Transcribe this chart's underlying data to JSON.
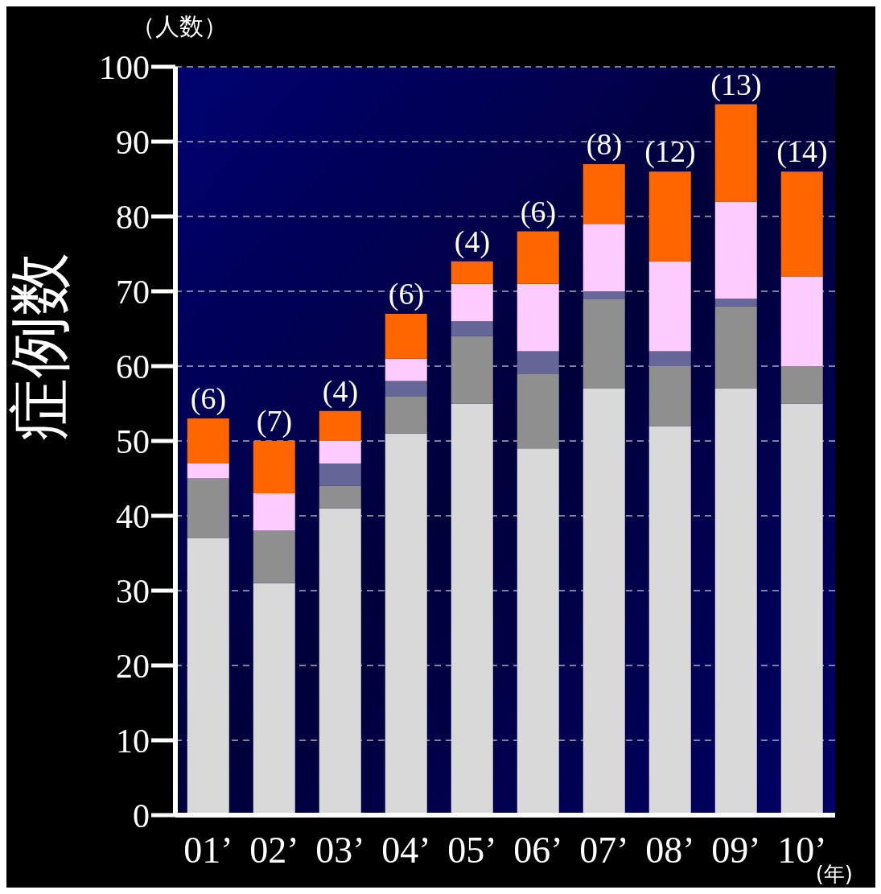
{
  "chart_data": {
    "type": "bar",
    "stacked": true,
    "xlabel": "(年)",
    "ylabel": "症例数",
    "categories": [
      "01’",
      "02’",
      "03’",
      "04’",
      "05’",
      "06’",
      "07’",
      "08’",
      "09’",
      "10’"
    ],
    "series": [
      {
        "color": "#d9d9d9",
        "values": [
          37,
          31,
          41,
          51,
          55,
          49,
          57,
          52,
          57,
          55
        ]
      },
      {
        "color": "#8f8f8f",
        "values": [
          8,
          7,
          3,
          5,
          9,
          10,
          12,
          8,
          11,
          5
        ]
      },
      {
        "color": "#666699",
        "values": [
          0,
          0,
          3,
          2,
          2,
          3,
          1,
          2,
          1,
          0
        ]
      },
      {
        "color": "#ffccff",
        "values": [
          2,
          5,
          3,
          3,
          5,
          9,
          9,
          12,
          13,
          12
        ]
      },
      {
        "color": "#ff6600",
        "values": [
          6,
          7,
          4,
          6,
          3,
          7,
          8,
          12,
          13,
          14
        ]
      }
    ],
    "ylim": [
      0,
      100
    ],
    "yticks": [
      0,
      10,
      20,
      30,
      40,
      50,
      60,
      70,
      80,
      90,
      100
    ],
    "grid": "y",
    "line_style": "dashed",
    "annotations": [
      "（人数）",
      {
        "text": "(6)",
        "x": "01’",
        "y": 53
      },
      {
        "text": "(7)",
        "x": "02’",
        "y": 50
      },
      {
        "text": "(4)",
        "x": "03’",
        "y": 54
      },
      {
        "text": "(6)",
        "x": "04’",
        "y": 67
      },
      {
        "text": "(4)",
        "x": "05’",
        "y": 74
      },
      {
        "text": "(6)",
        "x": "06’",
        "y": 78
      },
      {
        "text": "(8)",
        "x": "07’",
        "y": 87
      },
      {
        "text": "(12)",
        "x": "08’",
        "y": 86
      },
      {
        "text": "(13)",
        "x": "09’",
        "y": 95
      },
      {
        "text": "(14)",
        "x": "10’",
        "y": 86
      }
    ]
  }
}
